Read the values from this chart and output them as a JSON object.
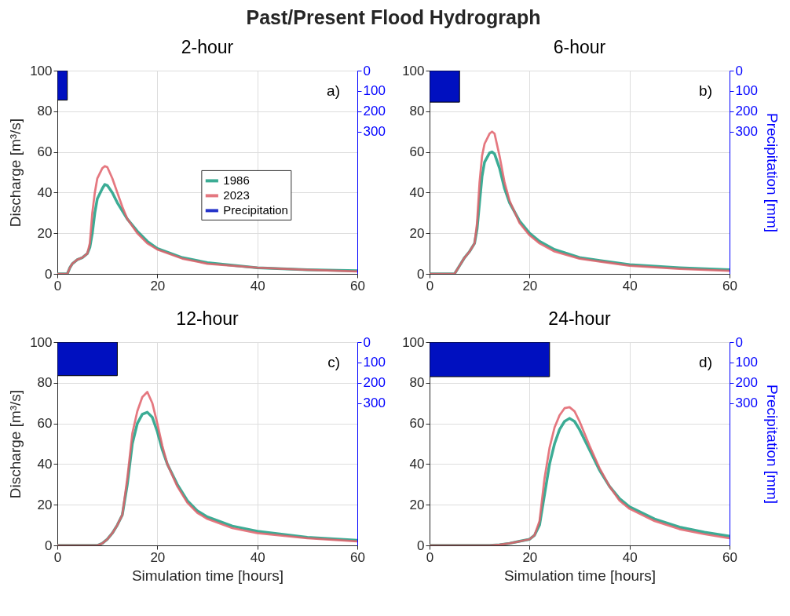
{
  "chart_data": [
    {
      "type": "other",
      "title": "Past/Present Flood Hydrograph"
    },
    {
      "type": "line",
      "title": "2-hour",
      "ylabel": "Discharge [m³/s]",
      "annotations": [
        "a)"
      ],
      "xlim": [
        0,
        60
      ],
      "xticks": [
        0,
        20,
        40,
        60
      ],
      "ylim": [
        0,
        100
      ],
      "yticks": [
        0,
        20,
        40,
        60,
        80,
        100
      ],
      "y2lim": [
        1000,
        0
      ],
      "y2ticks": [
        0,
        100,
        200,
        300
      ],
      "grid": true,
      "legend": "right",
      "line_style": "solid",
      "series": [
        {
          "name": "1986",
          "color": "#1a9e82",
          "x": [
            0,
            2,
            2.5,
            3,
            4,
            5,
            6,
            6.5,
            7,
            7.5,
            8,
            9,
            9.5,
            10,
            11,
            12,
            14,
            16,
            18,
            20,
            25,
            30,
            40,
            50,
            60
          ],
          "values": [
            0,
            0,
            3,
            5,
            7,
            8,
            10,
            13,
            20,
            30,
            37,
            42,
            44,
            43.5,
            40,
            35,
            27,
            21,
            16,
            12.5,
            8,
            5.5,
            3,
            2,
            1.5
          ]
        },
        {
          "name": "2023",
          "color": "#e0606a",
          "x": [
            0,
            2,
            2.5,
            3,
            4,
            5,
            6,
            6.5,
            7,
            7.5,
            8,
            9,
            9.5,
            10,
            11,
            12,
            13,
            14,
            16,
            18,
            20,
            25,
            30,
            40,
            50,
            60
          ],
          "values": [
            0,
            0,
            3,
            5,
            7,
            8,
            10,
            15,
            30,
            40,
            47,
            52,
            53,
            52.5,
            47,
            40,
            33,
            27,
            20,
            15,
            12,
            7.5,
            5,
            3,
            2,
            1.2
          ]
        },
        {
          "name": "Precipitation",
          "type": "area",
          "axis": "y2",
          "color": "#0010c0",
          "x": [
            0,
            2
          ],
          "values": [
            145,
            145
          ]
        }
      ]
    },
    {
      "type": "line",
      "title": "6-hour",
      "y2label": "Precipitation [mm]",
      "annotations": [
        "b)"
      ],
      "xlim": [
        0,
        60
      ],
      "xticks": [
        0,
        20,
        40,
        60
      ],
      "ylim": [
        0,
        100
      ],
      "yticks": [
        0,
        20,
        40,
        60,
        80,
        100
      ],
      "y2lim": [
        1000,
        0
      ],
      "y2ticks": [
        0,
        100,
        200,
        300
      ],
      "grid": true,
      "line_style": "solid",
      "series": [
        {
          "color": "#1a9e82",
          "x": [
            0,
            5,
            6,
            7,
            8,
            9,
            9.5,
            10,
            10.5,
            11,
            12,
            12.5,
            13,
            14,
            15,
            16,
            18,
            20,
            22,
            25,
            30,
            40,
            50,
            60
          ],
          "values": [
            0,
            0,
            4,
            8,
            11,
            15,
            22,
            35,
            48,
            55,
            59.5,
            60,
            59,
            52,
            42,
            35,
            26,
            20,
            16,
            12,
            8,
            4.5,
            3,
            2
          ]
        },
        {
          "color": "#e0606a",
          "x": [
            0,
            5,
            6,
            7,
            8,
            9,
            9.5,
            10,
            10.5,
            11,
            12,
            12.5,
            13,
            14,
            15,
            16,
            18,
            20,
            22,
            25,
            30,
            40,
            50,
            60
          ],
          "values": [
            0,
            0,
            4,
            8,
            11,
            15,
            25,
            45,
            58,
            64,
            69,
            70,
            69,
            58,
            45,
            36,
            25,
            19,
            15,
            11,
            7.5,
            4,
            2.5,
            1.5
          ]
        },
        {
          "type": "area",
          "axis": "y2",
          "color": "#0010c0",
          "x": [
            0,
            6
          ],
          "values": [
            155,
            155
          ]
        }
      ]
    },
    {
      "type": "line",
      "title": "12-hour",
      "xlabel": "Simulation time [hours]",
      "ylabel": "Discharge [m³/s]",
      "annotations": [
        "c)"
      ],
      "xlim": [
        0,
        60
      ],
      "xticks": [
        0,
        20,
        40,
        60
      ],
      "ylim": [
        0,
        100
      ],
      "yticks": [
        0,
        20,
        40,
        60,
        80,
        100
      ],
      "y2lim": [
        1000,
        0
      ],
      "y2ticks": [
        0,
        100,
        200,
        300
      ],
      "grid": true,
      "line_style": "solid",
      "series": [
        {
          "color": "#1a9e82",
          "x": [
            0,
            8,
            9,
            10,
            11,
            12,
            13,
            14,
            15,
            16,
            17,
            18,
            19,
            20,
            21,
            22,
            24,
            26,
            28,
            30,
            35,
            40,
            50,
            60
          ],
          "values": [
            0,
            0,
            1,
            3,
            6,
            10,
            15,
            30,
            50,
            60,
            64.5,
            65.5,
            63,
            56,
            47,
            40,
            30,
            22,
            17,
            14,
            9.5,
            7,
            4,
            2.5
          ]
        },
        {
          "color": "#e0606a",
          "x": [
            0,
            8,
            9,
            10,
            11,
            12,
            13,
            14,
            15,
            16,
            17,
            18,
            19,
            20,
            21,
            22,
            24,
            26,
            28,
            30,
            35,
            40,
            50,
            60
          ],
          "values": [
            0,
            0,
            1,
            3,
            6,
            10,
            15,
            33,
            55,
            66,
            73,
            75.5,
            70,
            60,
            49,
            40,
            29,
            21,
            16,
            13,
            8.5,
            6,
            3.5,
            2
          ]
        },
        {
          "type": "area",
          "axis": "y2",
          "color": "#0010c0",
          "x": [
            0,
            12
          ],
          "values": [
            165,
            165
          ]
        }
      ]
    },
    {
      "type": "line",
      "title": "24-hour",
      "xlabel": "Simulation time [hours]",
      "y2label": "Precipitation [mm]",
      "annotations": [
        "d)"
      ],
      "xlim": [
        0,
        60
      ],
      "xticks": [
        0,
        20,
        40,
        60
      ],
      "ylim": [
        0,
        100
      ],
      "yticks": [
        0,
        20,
        40,
        60,
        80,
        100
      ],
      "y2lim": [
        1000,
        0
      ],
      "y2ticks": [
        0,
        100,
        200,
        300
      ],
      "grid": true,
      "line_style": "solid",
      "series": [
        {
          "color": "#1a9e82",
          "x": [
            0,
            12,
            14,
            16,
            18,
            20,
            21,
            22,
            23,
            24,
            25,
            26,
            27,
            28,
            29,
            30,
            32,
            34,
            36,
            38,
            40,
            45,
            50,
            55,
            60
          ],
          "values": [
            0,
            0,
            0.3,
            1,
            2,
            3,
            5,
            10,
            25,
            40,
            50,
            57,
            61,
            62.5,
            61,
            57,
            47,
            37,
            29,
            23,
            19,
            13,
            9,
            6.5,
            4.5
          ]
        },
        {
          "color": "#e0606a",
          "x": [
            0,
            12,
            14,
            16,
            18,
            20,
            21,
            22,
            23,
            24,
            25,
            26,
            27,
            28,
            29,
            30,
            32,
            34,
            36,
            38,
            40,
            45,
            50,
            55,
            60
          ],
          "values": [
            0,
            0,
            0.3,
            1,
            2,
            3,
            5,
            12,
            33,
            48,
            58,
            64,
            67.5,
            68,
            66,
            61,
            49,
            38,
            29,
            22,
            18,
            12,
            8,
            5.5,
            3.5
          ]
        },
        {
          "type": "area",
          "axis": "y2",
          "color": "#0010c0",
          "x": [
            0,
            24
          ],
          "values": [
            170,
            170
          ]
        }
      ]
    }
  ]
}
